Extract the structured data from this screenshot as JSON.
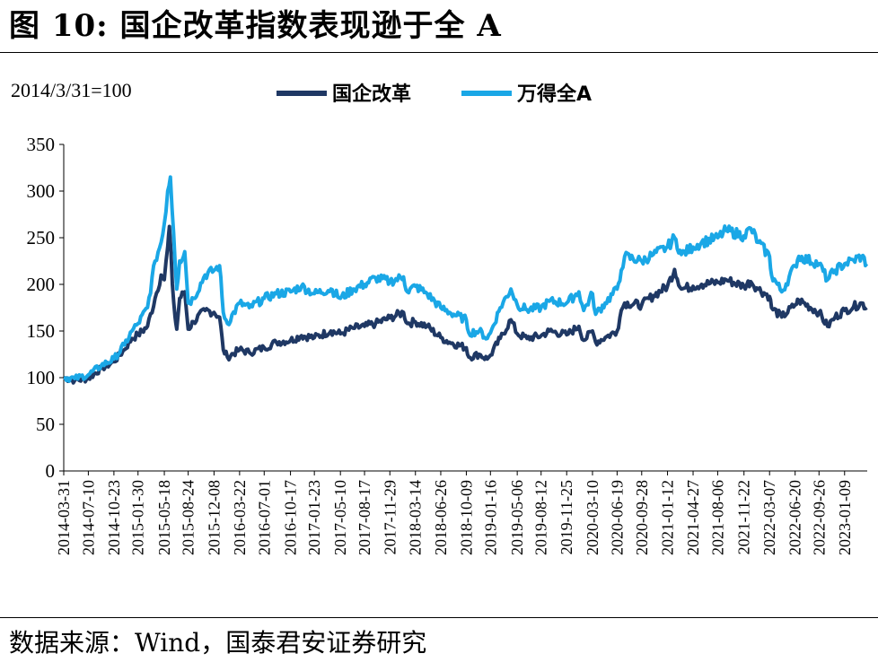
{
  "header": {
    "title": "图 10: 国企改革指数表现逊于全 A"
  },
  "footer": {
    "source": "数据来源：Wind，国泰君安证券研究"
  },
  "chart_data": {
    "type": "line",
    "note": "2014/3/31=100",
    "ylim": [
      0,
      350
    ],
    "yticks": [
      0,
      50,
      100,
      150,
      200,
      250,
      300,
      350
    ],
    "legend_position": "top-center",
    "grid": false,
    "categories": [
      "2014-03-31",
      "2014-07-10",
      "2014-10-23",
      "2015-01-30",
      "2015-05-18",
      "2015-08-24",
      "2015-12-08",
      "2016-03-22",
      "2016-07-01",
      "2016-10-17",
      "2017-01-23",
      "2017-05-10",
      "2017-08-17",
      "2017-11-29",
      "2018-03-14",
      "2018-06-26",
      "2018-10-09",
      "2019-01-16",
      "2019-05-06",
      "2019-08-12",
      "2019-11-25",
      "2020-03-10",
      "2020-06-19",
      "2020-09-28",
      "2021-01-12",
      "2021-04-27",
      "2021-08-06",
      "2021-11-22",
      "2022-03-07",
      "2022-06-20",
      "2022-09-26",
      "2023-01-09"
    ],
    "series": [
      {
        "name": "国企改革",
        "color": "#1f3864",
        "points": [
          [
            "2014-03-31",
            100
          ],
          [
            "2014-05-15",
            97
          ],
          [
            "2014-07-10",
            99
          ],
          [
            "2014-09-01",
            110
          ],
          [
            "2014-10-23",
            117
          ],
          [
            "2014-12-05",
            130
          ],
          [
            "2015-01-05",
            142
          ],
          [
            "2015-01-30",
            146
          ],
          [
            "2015-03-10",
            155
          ],
          [
            "2015-04-10",
            185
          ],
          [
            "2015-05-05",
            210
          ],
          [
            "2015-05-18",
            205
          ],
          [
            "2015-06-01",
            240
          ],
          [
            "2015-06-08",
            262
          ],
          [
            "2015-06-20",
            200
          ],
          [
            "2015-07-01",
            165
          ],
          [
            "2015-07-08",
            152
          ],
          [
            "2015-07-20",
            185
          ],
          [
            "2015-08-10",
            192
          ],
          [
            "2015-08-24",
            152
          ],
          [
            "2015-09-15",
            160
          ],
          [
            "2015-11-01",
            172
          ],
          [
            "2015-12-08",
            170
          ],
          [
            "2015-12-31",
            165
          ],
          [
            "2016-01-15",
            130
          ],
          [
            "2016-02-01",
            122
          ],
          [
            "2016-03-22",
            130
          ],
          [
            "2016-05-01",
            127
          ],
          [
            "2016-07-01",
            132
          ],
          [
            "2016-08-20",
            138
          ],
          [
            "2016-10-17",
            140
          ],
          [
            "2016-12-01",
            145
          ],
          [
            "2017-01-23",
            143
          ],
          [
            "2017-04-01",
            150
          ],
          [
            "2017-05-10",
            147
          ],
          [
            "2017-07-01",
            153
          ],
          [
            "2017-08-17",
            155
          ],
          [
            "2017-10-01",
            158
          ],
          [
            "2017-11-29",
            164
          ],
          [
            "2018-01-24",
            170
          ],
          [
            "2018-02-09",
            158
          ],
          [
            "2018-03-14",
            160
          ],
          [
            "2018-05-01",
            155
          ],
          [
            "2018-06-26",
            143
          ],
          [
            "2018-08-01",
            138
          ],
          [
            "2018-10-09",
            132
          ],
          [
            "2018-10-19",
            122
          ],
          [
            "2018-12-01",
            125
          ],
          [
            "2019-01-03",
            120
          ],
          [
            "2019-01-16",
            124
          ],
          [
            "2019-02-25",
            142
          ],
          [
            "2019-04-10",
            162
          ],
          [
            "2019-05-06",
            147
          ],
          [
            "2019-06-15",
            142
          ],
          [
            "2019-08-12",
            145
          ],
          [
            "2019-09-15",
            150
          ],
          [
            "2019-11-25",
            146
          ],
          [
            "2020-01-14",
            155
          ],
          [
            "2020-02-03",
            140
          ],
          [
            "2020-03-10",
            150
          ],
          [
            "2020-03-23",
            138
          ],
          [
            "2020-05-01",
            143
          ],
          [
            "2020-06-19",
            150
          ],
          [
            "2020-07-06",
            172
          ],
          [
            "2020-07-20",
            180
          ],
          [
            "2020-09-28",
            178
          ],
          [
            "2020-11-15",
            188
          ],
          [
            "2021-01-12",
            198
          ],
          [
            "2021-02-10",
            216
          ],
          [
            "2021-03-10",
            195
          ],
          [
            "2021-04-27",
            198
          ],
          [
            "2021-06-01",
            200
          ],
          [
            "2021-08-06",
            202
          ],
          [
            "2021-09-10",
            205
          ],
          [
            "2021-11-22",
            198
          ],
          [
            "2021-12-20",
            203
          ],
          [
            "2022-01-20",
            195
          ],
          [
            "2022-03-07",
            187
          ],
          [
            "2022-03-15",
            175
          ],
          [
            "2022-04-26",
            165
          ],
          [
            "2022-06-20",
            178
          ],
          [
            "2022-07-05",
            183
          ],
          [
            "2022-09-26",
            170
          ],
          [
            "2022-10-31",
            155
          ],
          [
            "2022-12-01",
            165
          ],
          [
            "2023-01-09",
            172
          ],
          [
            "2023-02-15",
            176
          ],
          [
            "2023-03-20",
            180
          ],
          [
            "2023-04-10",
            175
          ]
        ]
      },
      {
        "name": "万得全A",
        "color": "#1aa7e6",
        "points": [
          [
            "2014-03-31",
            100
          ],
          [
            "2014-05-15",
            99
          ],
          [
            "2014-07-10",
            103
          ],
          [
            "2014-09-01",
            113
          ],
          [
            "2014-10-23",
            120
          ],
          [
            "2014-12-05",
            135
          ],
          [
            "2015-01-05",
            150
          ],
          [
            "2015-01-30",
            158
          ],
          [
            "2015-03-10",
            175
          ],
          [
            "2015-04-10",
            225
          ],
          [
            "2015-05-05",
            245
          ],
          [
            "2015-05-18",
            265
          ],
          [
            "2015-06-01",
            300
          ],
          [
            "2015-06-12",
            315
          ],
          [
            "2015-06-25",
            255
          ],
          [
            "2015-07-08",
            195
          ],
          [
            "2015-07-20",
            225
          ],
          [
            "2015-08-10",
            235
          ],
          [
            "2015-08-24",
            180
          ],
          [
            "2015-09-15",
            185
          ],
          [
            "2015-11-01",
            210
          ],
          [
            "2015-12-08",
            215
          ],
          [
            "2015-12-31",
            220
          ],
          [
            "2016-01-15",
            170
          ],
          [
            "2016-02-01",
            158
          ],
          [
            "2016-03-22",
            180
          ],
          [
            "2016-05-01",
            175
          ],
          [
            "2016-07-01",
            185
          ],
          [
            "2016-08-20",
            190
          ],
          [
            "2016-10-17",
            192
          ],
          [
            "2016-12-01",
            198
          ],
          [
            "2017-01-23",
            190
          ],
          [
            "2017-04-01",
            195
          ],
          [
            "2017-05-10",
            185
          ],
          [
            "2017-07-01",
            195
          ],
          [
            "2017-08-17",
            200
          ],
          [
            "2017-10-01",
            207
          ],
          [
            "2017-11-29",
            203
          ],
          [
            "2018-01-24",
            208
          ],
          [
            "2018-02-09",
            192
          ],
          [
            "2018-03-14",
            198
          ],
          [
            "2018-05-01",
            190
          ],
          [
            "2018-06-26",
            175
          ],
          [
            "2018-08-01",
            170
          ],
          [
            "2018-10-09",
            162
          ],
          [
            "2018-10-19",
            148
          ],
          [
            "2018-12-01",
            150
          ],
          [
            "2019-01-03",
            142
          ],
          [
            "2019-01-16",
            148
          ],
          [
            "2019-02-25",
            175
          ],
          [
            "2019-04-10",
            195
          ],
          [
            "2019-05-06",
            178
          ],
          [
            "2019-06-15",
            173
          ],
          [
            "2019-08-12",
            175
          ],
          [
            "2019-09-15",
            182
          ],
          [
            "2019-11-25",
            180
          ],
          [
            "2020-01-14",
            192
          ],
          [
            "2020-02-03",
            172
          ],
          [
            "2020-03-10",
            190
          ],
          [
            "2020-03-23",
            168
          ],
          [
            "2020-05-01",
            180
          ],
          [
            "2020-06-19",
            195
          ],
          [
            "2020-07-06",
            215
          ],
          [
            "2020-07-20",
            230
          ],
          [
            "2020-09-28",
            225
          ],
          [
            "2020-11-15",
            232
          ],
          [
            "2021-01-12",
            240
          ],
          [
            "2021-02-10",
            250
          ],
          [
            "2021-03-10",
            232
          ],
          [
            "2021-04-27",
            240
          ],
          [
            "2021-06-01",
            245
          ],
          [
            "2021-08-06",
            250
          ],
          [
            "2021-09-10",
            258
          ],
          [
            "2021-11-22",
            252
          ],
          [
            "2021-12-20",
            260
          ],
          [
            "2022-01-20",
            245
          ],
          [
            "2022-03-07",
            230
          ],
          [
            "2022-03-15",
            210
          ],
          [
            "2022-04-26",
            192
          ],
          [
            "2022-06-20",
            220
          ],
          [
            "2022-07-05",
            230
          ],
          [
            "2022-09-26",
            222
          ],
          [
            "2022-10-31",
            205
          ],
          [
            "2022-12-01",
            215
          ],
          [
            "2023-01-09",
            222
          ],
          [
            "2023-02-15",
            226
          ],
          [
            "2023-03-20",
            230
          ],
          [
            "2023-04-10",
            222
          ]
        ]
      }
    ]
  }
}
